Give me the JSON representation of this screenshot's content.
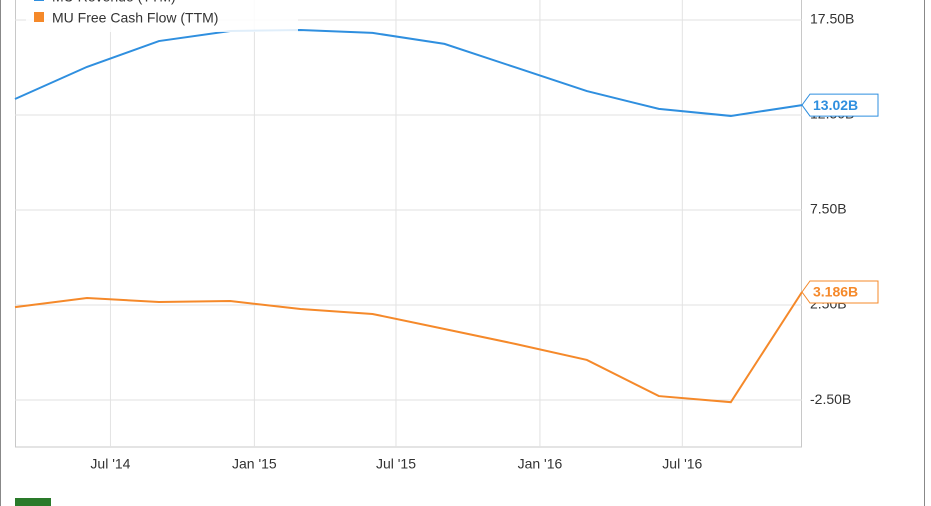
{
  "chart_data": {
    "type": "line",
    "x": [
      "2014-03",
      "2014-06",
      "2014-09",
      "2014-12",
      "2015-03",
      "2015-06",
      "2015-09",
      "2015-12",
      "2016-03",
      "2016-06",
      "2016-09",
      "2016-12"
    ],
    "series": [
      {
        "name": "MU Revenue (TTM)",
        "color": "#2f8fdf",
        "values": [
          13.34,
          15.03,
          16.39,
          16.92,
          16.97,
          16.82,
          16.24,
          15.0,
          13.76,
          12.82,
          12.45,
          13.02
        ],
        "value_labels": [
          null,
          null,
          null,
          null,
          null,
          null,
          null,
          null,
          null,
          null,
          null,
          "13.02B"
        ]
      },
      {
        "name": "MU Free Cash Flow (TTM)",
        "color": "#f5892a",
        "values": [
          2.39,
          2.87,
          2.66,
          2.71,
          2.29,
          2.03,
          1.24,
          0.45,
          -0.39,
          -2.29,
          -2.61,
          3.186
        ],
        "value_labels": [
          null,
          null,
          null,
          null,
          null,
          null,
          null,
          null,
          null,
          null,
          null,
          "3.186B"
        ]
      }
    ],
    "xlim": [
      "2014-03",
      "2016-12"
    ],
    "xticks": [
      {
        "value": "2014-07",
        "label": "Jul '14"
      },
      {
        "value": "2015-01",
        "label": "Jan '15"
      },
      {
        "value": "2015-07",
        "label": "Jul '15"
      },
      {
        "value": "2016-01",
        "label": "Jan '16"
      },
      {
        "value": "2016-07",
        "label": "Jul '16"
      }
    ],
    "ylim": [
      -4.97,
      18.55
    ],
    "yticks": [
      {
        "value": -2.5,
        "label": "-2.50B"
      },
      {
        "value": 2.5,
        "label": "2.50B"
      },
      {
        "value": 7.5,
        "label": "7.50B"
      },
      {
        "value": 12.5,
        "label": "12.50B"
      },
      {
        "value": 17.5,
        "label": "17.50B"
      }
    ],
    "grid": true
  }
}
